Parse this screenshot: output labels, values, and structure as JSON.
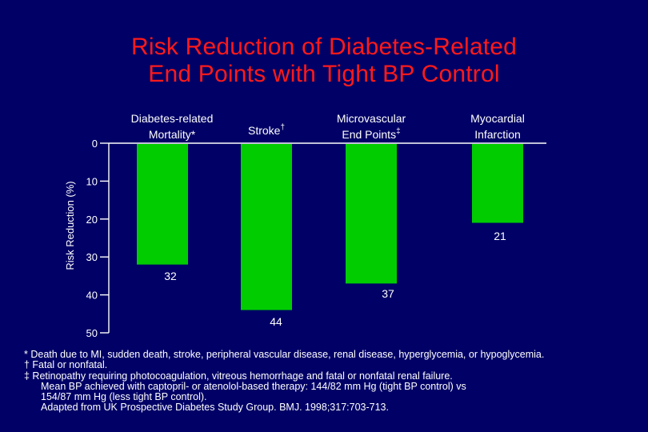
{
  "title_line1": "Risk Reduction of Diabetes-Related",
  "title_line2": "End Points with Tight BP Control",
  "colors": {
    "background": "#000066",
    "title": "#ff1a1a",
    "bar": "#00cc00",
    "text": "#ffffff"
  },
  "chart_data": {
    "type": "bar",
    "orientation": "vertical-inverted",
    "categories": [
      [
        "Diabetes-related",
        "Mortality*"
      ],
      [
        "Stroke†"
      ],
      [
        "Microvascular",
        "End Points‡"
      ],
      [
        "Myocardial",
        "Infarction"
      ]
    ],
    "values": [
      32,
      44,
      37,
      21
    ],
    "data_labels": [
      "32",
      "44",
      "37",
      "21"
    ],
    "ylabel": "Risk Reduction (%)",
    "ylim": [
      0,
      50
    ],
    "yticks": [
      0,
      10,
      20,
      30,
      40,
      50
    ],
    "grid": false,
    "legend": "none"
  },
  "footnotes": [
    "* Death due to MI, sudden death, stroke, peripheral vascular disease, renal disease, hyperglycemia, or hypoglycemia.",
    "† Fatal or nonfatal.",
    "‡ Retinopathy requiring photocoagulation, vitreous hemorrhage and fatal or nonfatal renal failure.",
    "Mean BP achieved with captopril- or atenolol-based therapy: 144/82 mm Hg (tight BP control) vs",
    "154/87 mm Hg (less tight BP control).",
    "Adapted from UK Prospective Diabetes Study Group. BMJ. 1998;317:703-713."
  ]
}
